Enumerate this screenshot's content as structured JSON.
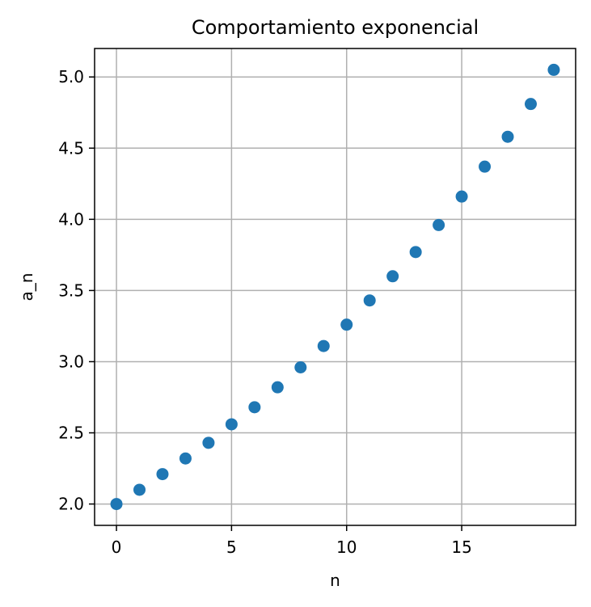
{
  "chart_data": {
    "type": "scatter",
    "title": "Comportamiento exponencial",
    "xlabel": "n",
    "ylabel": "a_n",
    "x": [
      0,
      1,
      2,
      3,
      4,
      5,
      6,
      7,
      8,
      9,
      10,
      11,
      12,
      13,
      14,
      15,
      16,
      17,
      18,
      19
    ],
    "y": [
      2.0,
      2.1,
      2.21,
      2.32,
      2.43,
      2.56,
      2.68,
      2.82,
      2.96,
      3.11,
      3.26,
      3.43,
      3.6,
      3.77,
      3.96,
      4.16,
      4.37,
      4.58,
      4.81,
      5.05
    ],
    "xlim": [
      -0.95,
      19.95
    ],
    "ylim": [
      1.85,
      5.2
    ],
    "xticks": [
      0,
      5,
      10,
      15
    ],
    "xtick_labels": [
      "0",
      "5",
      "10",
      "15"
    ],
    "yticks": [
      2.0,
      2.5,
      3.0,
      3.5,
      4.0,
      4.5,
      5.0
    ],
    "ytick_labels": [
      "2.0",
      "2.5",
      "3.0",
      "3.5",
      "4.0",
      "4.5",
      "5.0"
    ],
    "grid": true,
    "marker_color": "#1f77b4",
    "grid_color": "#b0b0b0"
  }
}
